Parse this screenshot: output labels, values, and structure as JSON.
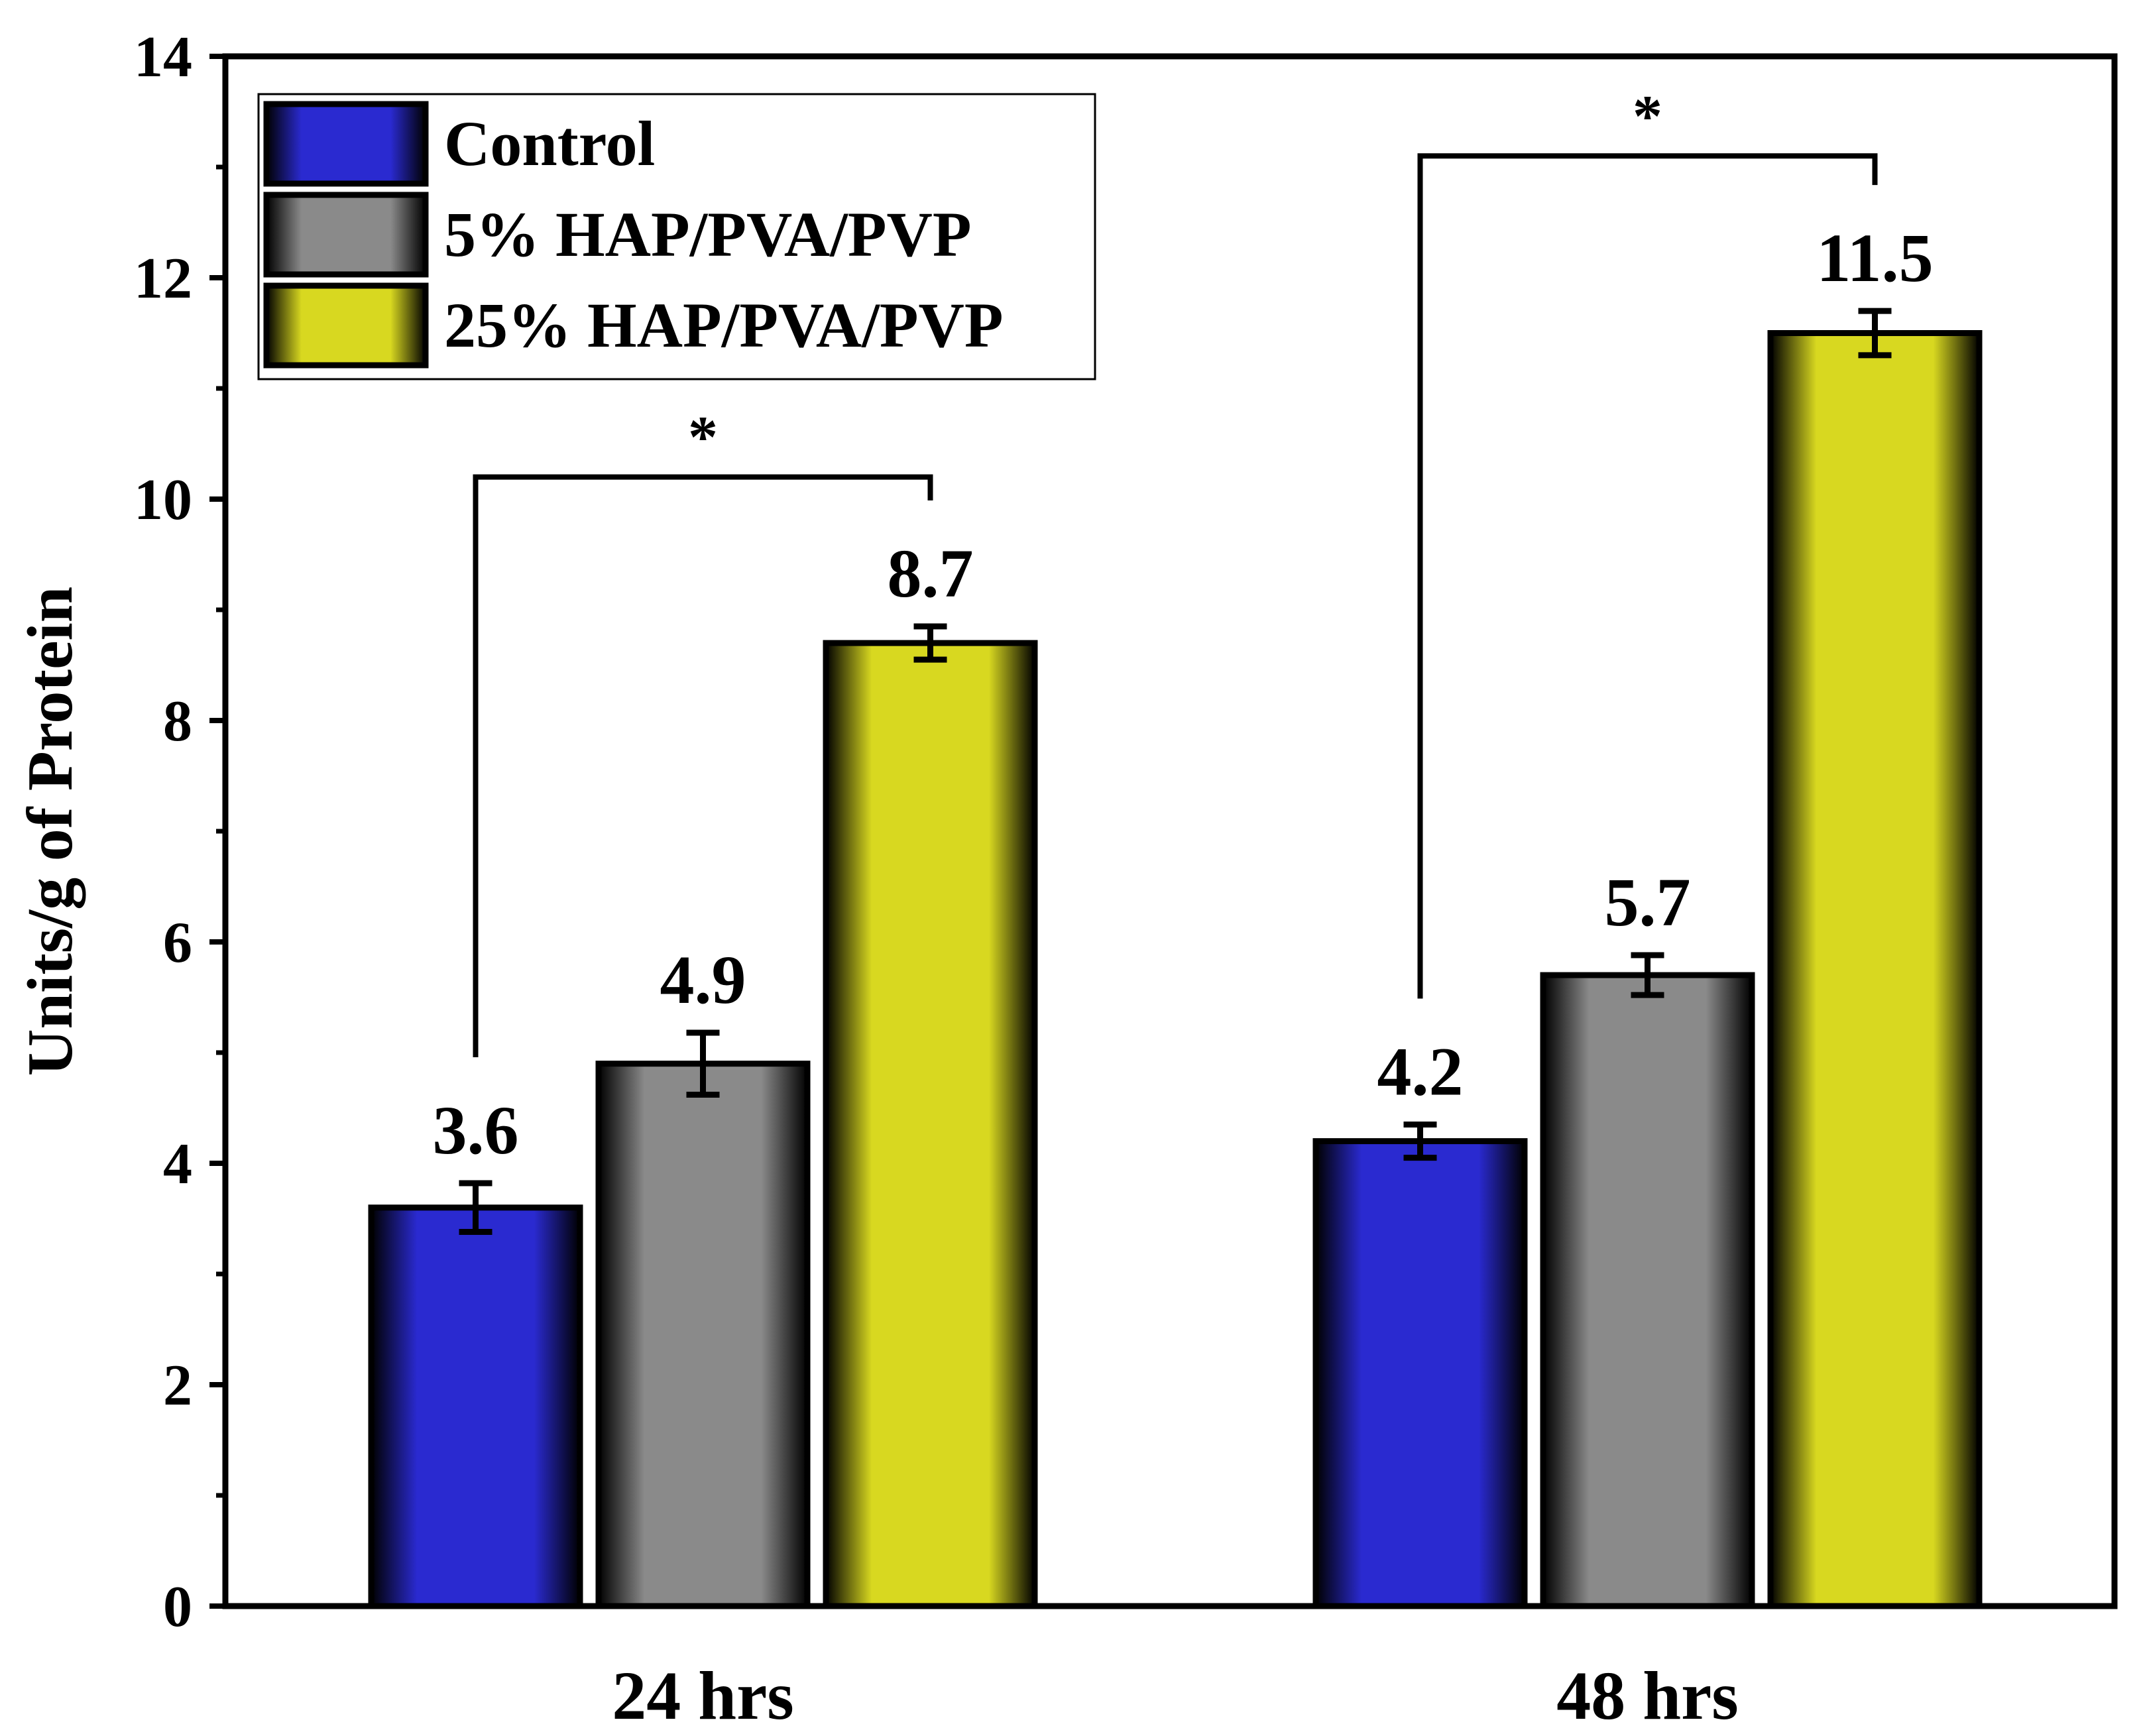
{
  "chart_data": {
    "type": "bar",
    "title": "",
    "xlabel": "",
    "ylabel": "Units/g of Protein",
    "ylim": [
      0,
      14
    ],
    "yticks": [
      0,
      2,
      4,
      6,
      8,
      10,
      12,
      14
    ],
    "grid": false,
    "legend_position": "top-left",
    "categories": [
      "24 hrs",
      "48 hrs"
    ],
    "series": [
      {
        "name": "Control",
        "color": "#2a2ad0",
        "values": [
          3.6,
          4.2
        ],
        "errors": [
          0.22,
          0.15
        ],
        "labels": [
          "3.6",
          "4.2"
        ]
      },
      {
        "name": "5% HAP/PVA/PVP",
        "color": "#8a8a8a",
        "values": [
          4.9,
          5.7
        ],
        "errors": [
          0.28,
          0.18
        ],
        "labels": [
          "4.9",
          "5.7"
        ]
      },
      {
        "name": "25% HAP/PVA/PVP",
        "color": "#d8d820",
        "values": [
          8.7,
          11.5
        ],
        "errors": [
          0.15,
          0.2
        ],
        "labels": [
          "8.7",
          "11.5"
        ]
      }
    ],
    "annotations": [
      {
        "text": "*",
        "category": 0,
        "from_series": 0,
        "to_series": 2,
        "y": 10.2
      },
      {
        "text": "*",
        "category": 1,
        "from_series": 0,
        "to_series": 2,
        "y": 13.1
      }
    ]
  }
}
